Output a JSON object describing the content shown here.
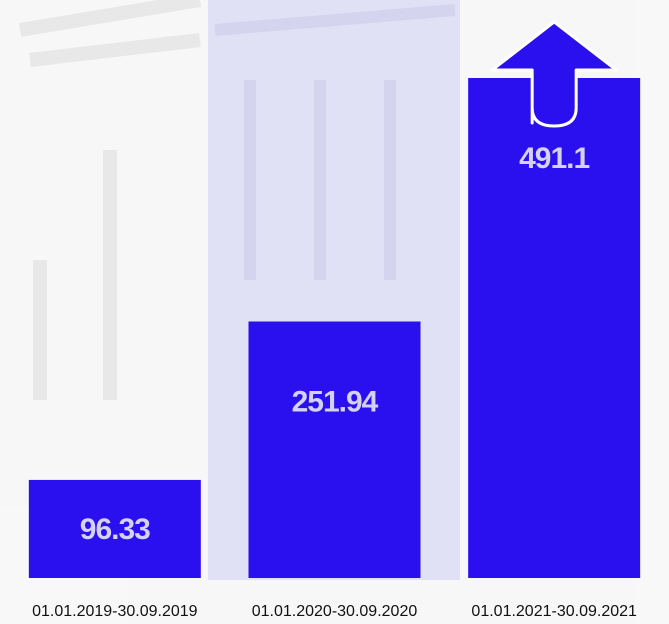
{
  "chart_data": {
    "type": "bar",
    "categories": [
      "01.01.2019-30.09.2019",
      "01.01.2020-30.09.2020",
      "01.01.2021-30.09.2021"
    ],
    "values": [
      96.33,
      251.94,
      491.1
    ],
    "color": "#2a10ee"
  }
}
